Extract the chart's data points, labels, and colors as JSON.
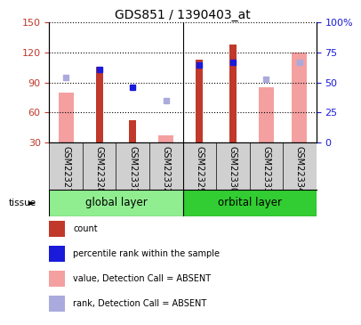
{
  "title": "GDS851 / 1390403_at",
  "samples": [
    "GSM22327",
    "GSM22328",
    "GSM22331",
    "GSM22332",
    "GSM22329",
    "GSM22330",
    "GSM22333",
    "GSM22334"
  ],
  "group_labels": [
    "global layer",
    "orbital layer"
  ],
  "red_bars": [
    null,
    106,
    52,
    null,
    113,
    128,
    null,
    null
  ],
  "pink_bars": [
    80,
    null,
    null,
    37,
    null,
    null,
    85,
    120
  ],
  "blue_squares": [
    null,
    103,
    85,
    null,
    107,
    110,
    null,
    null
  ],
  "lavender_squares": [
    95,
    null,
    null,
    72,
    null,
    null,
    93,
    110
  ],
  "ylim_left": [
    30,
    150
  ],
  "ylim_right": [
    0,
    100
  ],
  "yticks_left": [
    30,
    60,
    90,
    120,
    150
  ],
  "yticks_right": [
    0,
    25,
    50,
    75,
    100
  ],
  "red_color": "#c0392b",
  "pink_color": "#f4a0a0",
  "blue_color": "#1a1adb",
  "lavender_color": "#aaaadd",
  "global_layer_color": "#90EE90",
  "orbital_layer_color": "#32CD32",
  "gray_color": "#d0d0d0",
  "legend_items": [
    [
      "#c0392b",
      "count"
    ],
    [
      "#1a1adb",
      "percentile rank within the sample"
    ],
    [
      "#f4a0a0",
      "value, Detection Call = ABSENT"
    ],
    [
      "#aaaadd",
      "rank, Detection Call = ABSENT"
    ]
  ]
}
